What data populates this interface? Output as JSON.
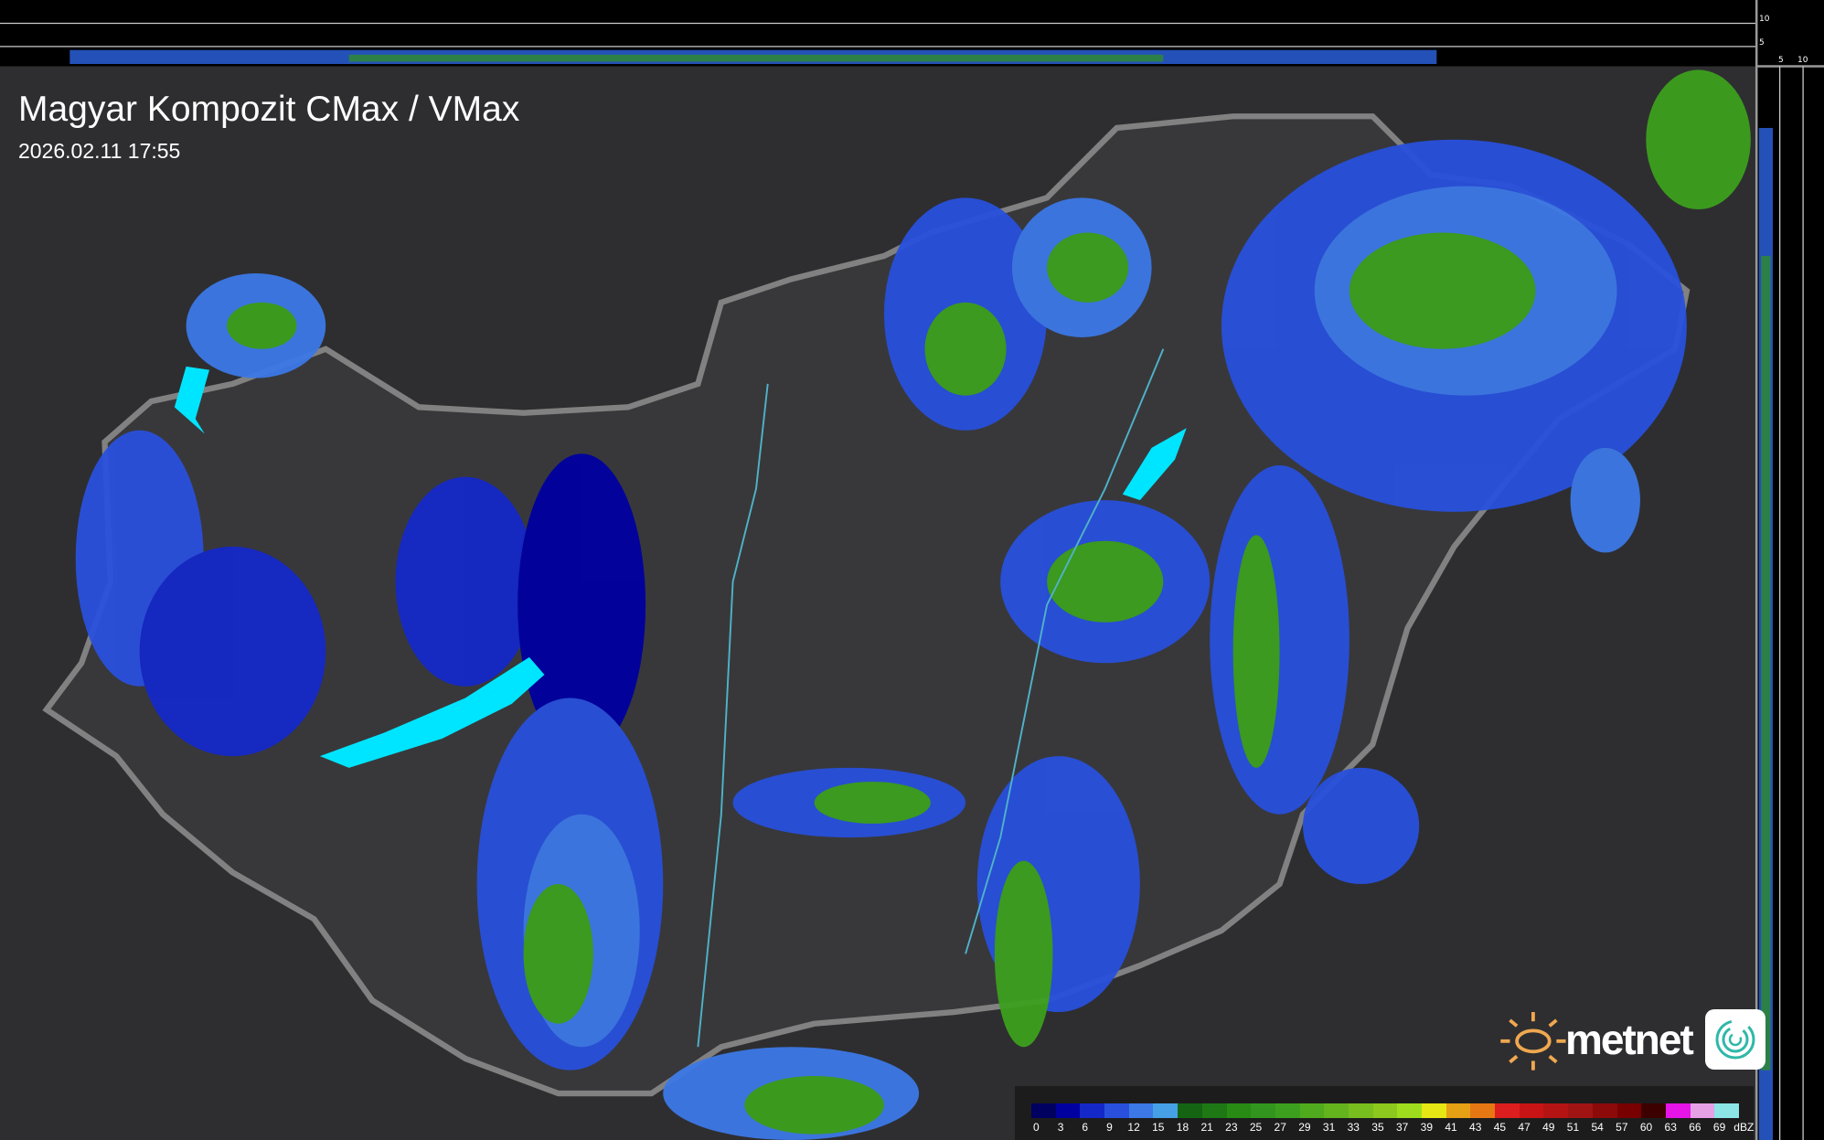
{
  "header": {
    "title": "Magyar Kompozit CMax / VMax",
    "timestamp": "2026.02.11 17:55"
  },
  "profile_axes": {
    "top_ticks": [
      "10",
      "5"
    ],
    "right_ticks": [
      "5",
      "10"
    ]
  },
  "legend": {
    "unit": "dBZ",
    "labels": [
      "0",
      "3",
      "6",
      "9",
      "12",
      "15",
      "18",
      "21",
      "23",
      "25",
      "27",
      "29",
      "31",
      "33",
      "35",
      "37",
      "39",
      "41",
      "43",
      "45",
      "47",
      "49",
      "51",
      "54",
      "57",
      "60",
      "63",
      "66",
      "69"
    ],
    "colors": [
      "#000060",
      "#0000a0",
      "#1428c8",
      "#2850dc",
      "#3c78e6",
      "#46a0e6",
      "#146414",
      "#1e7814",
      "#288c14",
      "#32961e",
      "#3ca01e",
      "#50aa1e",
      "#64b41e",
      "#78be1e",
      "#8cc81e",
      "#a0dc1e",
      "#e6e614",
      "#e6a014",
      "#e67814",
      "#dc1e1e",
      "#c81414",
      "#b41414",
      "#a01414",
      "#8c0a0a",
      "#780000",
      "#3c0000",
      "#e614e6",
      "#e6a0e6",
      "#8ce6e6"
    ]
  },
  "branding": {
    "logo_text": "metnet"
  },
  "colors": {
    "background": "#2e2e30",
    "border": "#8a8a8a",
    "rivers": "#4fb3c8",
    "lakes": "#00e5ff"
  }
}
